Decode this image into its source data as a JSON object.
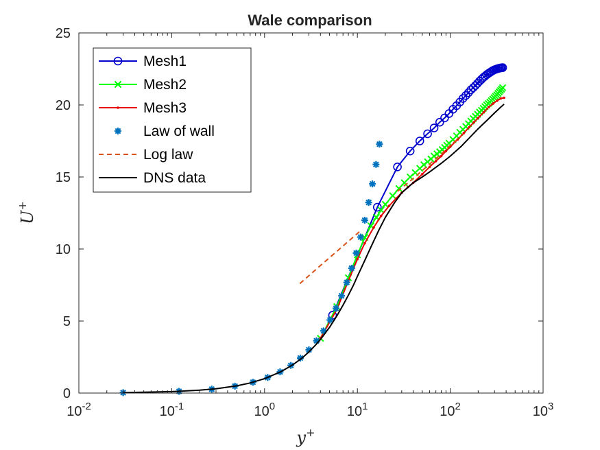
{
  "chart_data": {
    "type": "line",
    "title": "Wale comparison",
    "xlabel": "y",
    "xlabel_sup": "+",
    "ylabel": "U",
    "ylabel_sup": "+",
    "xscale": "log",
    "xlim": [
      0.01,
      1000
    ],
    "ylim": [
      0,
      25
    ],
    "xticks": [
      {
        "base": "10",
        "exp": "-2"
      },
      {
        "base": "10",
        "exp": "-1"
      },
      {
        "base": "10",
        "exp": "0"
      },
      {
        "base": "10",
        "exp": "1"
      },
      {
        "base": "10",
        "exp": "2"
      },
      {
        "base": "10",
        "exp": "3"
      }
    ],
    "yticks": [
      "0",
      "5",
      "10",
      "15",
      "20",
      "25"
    ],
    "legend_position": "top-left",
    "grid": false,
    "series": [
      {
        "name": "Mesh1",
        "color": "#0000CD",
        "marker": "circle",
        "line": "solid",
        "x": [
          5.4,
          16.4,
          27,
          37,
          47,
          57,
          67,
          77,
          87,
          97,
          107,
          117,
          127,
          137,
          147,
          157,
          167,
          177,
          187,
          197,
          207,
          217,
          227,
          237,
          247,
          257,
          267,
          277,
          287,
          297,
          307,
          317,
          327,
          337,
          347,
          357,
          367
        ],
        "y": [
          5.4,
          12.9,
          15.7,
          16.8,
          17.5,
          18.0,
          18.4,
          18.8,
          19.1,
          19.4,
          19.7,
          19.95,
          20.2,
          20.45,
          20.65,
          20.85,
          21.05,
          21.2,
          21.35,
          21.5,
          21.65,
          21.78,
          21.9,
          22.0,
          22.1,
          22.18,
          22.25,
          22.32,
          22.38,
          22.43,
          22.47,
          22.5,
          22.53,
          22.55,
          22.57,
          22.58,
          22.59
        ]
      },
      {
        "name": "Mesh2",
        "color": "#00FF00",
        "marker": "x",
        "line": "solid",
        "x": [
          4,
          6,
          8,
          10,
          12,
          14,
          16,
          18,
          20,
          24,
          28,
          32,
          37,
          42,
          47,
          52,
          57,
          62,
          67,
          72,
          77,
          82,
          87,
          92,
          97,
          107,
          117,
          127,
          137,
          147,
          157,
          167,
          177,
          187,
          197,
          207,
          217,
          227,
          237,
          247,
          257,
          267,
          277,
          287,
          297,
          307,
          317,
          327,
          337,
          347,
          357,
          367
        ],
        "y": [
          3.8,
          6.0,
          8.0,
          9.6,
          10.8,
          11.6,
          12.2,
          12.7,
          13.1,
          13.7,
          14.2,
          14.6,
          15.0,
          15.3,
          15.6,
          15.85,
          16.05,
          16.25,
          16.45,
          16.6,
          16.75,
          16.9,
          17.05,
          17.2,
          17.35,
          17.6,
          17.85,
          18.1,
          18.3,
          18.5,
          18.7,
          18.88,
          19.05,
          19.2,
          19.35,
          19.5,
          19.63,
          19.76,
          19.88,
          20.0,
          20.1,
          20.2,
          20.3,
          20.4,
          20.5,
          20.6,
          20.7,
          20.8,
          20.9,
          21.0,
          21.1,
          21.2
        ]
      },
      {
        "name": "Mesh3",
        "color": "#E60000",
        "marker": "dot",
        "line": "solid",
        "x": [
          4,
          6,
          8,
          10,
          12,
          15,
          18,
          22,
          26,
          30,
          35,
          40,
          50,
          60,
          70,
          80,
          90,
          100,
          120,
          140,
          160,
          180,
          200,
          230,
          260,
          290,
          320,
          350,
          380
        ],
        "y": [
          3.8,
          5.8,
          7.8,
          9.3,
          10.4,
          11.5,
          12.3,
          13.0,
          13.5,
          13.9,
          14.3,
          14.6,
          15.2,
          15.7,
          16.1,
          16.45,
          16.8,
          17.1,
          17.6,
          18.05,
          18.45,
          18.8,
          19.1,
          19.5,
          19.85,
          20.1,
          20.3,
          20.45,
          20.5
        ]
      },
      {
        "name": "Law of wall",
        "color": "#0072BD",
        "marker": "asterisk",
        "line": "none",
        "x": [
          0.03,
          0.12,
          0.27,
          0.48,
          0.75,
          1.08,
          1.47,
          1.92,
          2.43,
          3.0,
          3.63,
          4.32,
          5.07,
          5.88,
          6.75,
          7.68,
          8.67,
          9.72,
          10.83,
          12.0,
          13.23,
          14.52,
          15.87,
          17.28
        ],
        "y": [
          0.03,
          0.12,
          0.27,
          0.48,
          0.75,
          1.08,
          1.47,
          1.92,
          2.43,
          3.0,
          3.63,
          4.32,
          5.07,
          5.88,
          6.75,
          7.68,
          8.67,
          9.72,
          10.83,
          12.0,
          13.23,
          14.52,
          15.87,
          17.28
        ]
      },
      {
        "name": "Log law",
        "color": "#D95319",
        "marker": "none",
        "line": "dashed",
        "x": [
          2.4,
          4,
          6,
          8,
          10.5
        ],
        "y": [
          7.6,
          8.85,
          9.84,
          10.54,
          11.2
        ]
      },
      {
        "name": "Log law",
        "color": "#D95319",
        "marker": "none",
        "line": "dashed",
        "legend": false,
        "x": [
          27,
          40,
          60,
          80,
          100,
          130
        ],
        "y": [
          14.0,
          14.9,
          15.9,
          16.6,
          17.2,
          17.8
        ]
      },
      {
        "name": "DNS data",
        "color": "#000000",
        "marker": "none",
        "line": "solid",
        "x": [
          0.03,
          0.1,
          0.2,
          0.3,
          0.5,
          0.7,
          1.0,
          1.5,
          2.0,
          2.5,
          3.0,
          3.5,
          4.0,
          5.0,
          6.0,
          7.0,
          8.0,
          9.0,
          10,
          12,
          14,
          17,
          20,
          25,
          30,
          40,
          50,
          60,
          80,
          100,
          130,
          160,
          200,
          250,
          300,
          350,
          380
        ],
        "y": [
          0.03,
          0.1,
          0.2,
          0.3,
          0.5,
          0.7,
          1.0,
          1.48,
          1.95,
          2.4,
          2.85,
          3.3,
          3.72,
          4.55,
          5.35,
          6.1,
          6.8,
          7.45,
          8.1,
          9.2,
          10.15,
          11.3,
          12.2,
          13.2,
          13.9,
          14.6,
          15.0,
          15.35,
          15.95,
          16.45,
          17.1,
          17.7,
          18.35,
          18.95,
          19.45,
          19.85,
          20.05
        ]
      }
    ]
  }
}
